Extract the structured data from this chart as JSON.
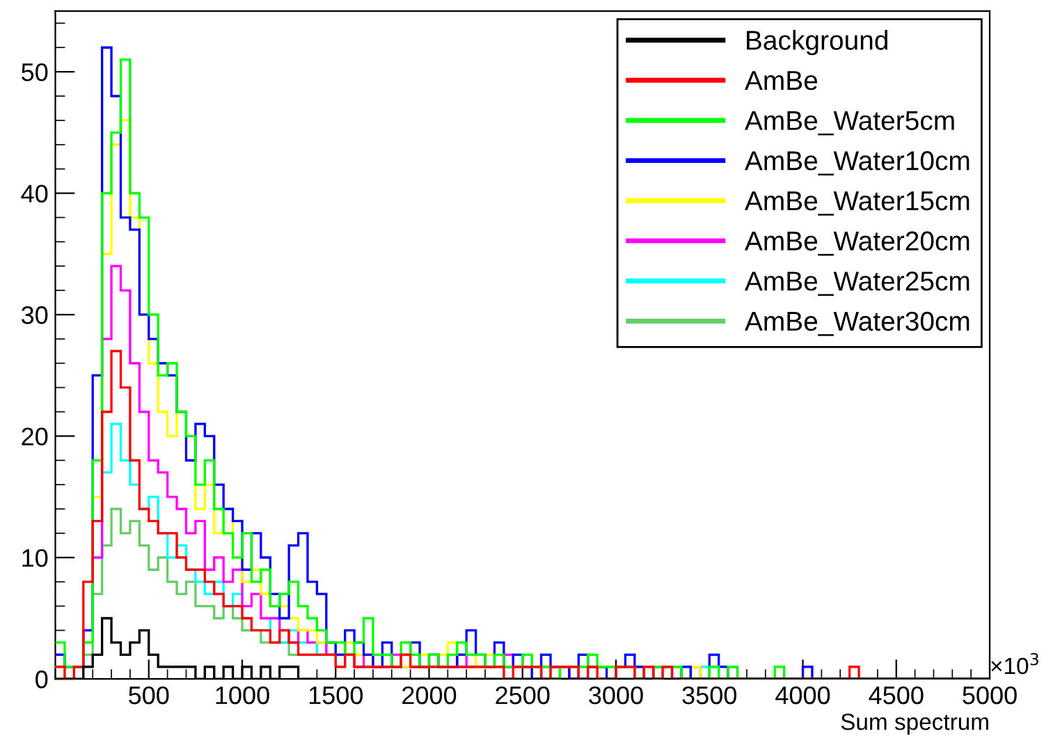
{
  "chart_data": {
    "type": "histogram",
    "xlabel": "Sum spectrum",
    "annotations": [
      "×10$^{3}$"
    ],
    "bins": [
      0,
      50,
      100,
      150,
      200,
      250,
      300,
      350,
      400,
      450,
      500,
      550,
      600,
      650,
      700,
      750,
      800,
      850,
      900,
      950,
      1000,
      1050,
      1100,
      1150,
      1200,
      1250,
      1300,
      1350,
      1400,
      1450,
      1500,
      1550,
      1600,
      1650,
      1700,
      1750,
      1800,
      1850,
      1900,
      1950,
      2000,
      2050,
      2100,
      2150,
      2200,
      2250,
      2300,
      2350,
      2400,
      2450,
      2500,
      2550,
      2600,
      2650,
      2700,
      2750,
      2800,
      2850,
      2900,
      2950,
      3000,
      3050,
      3100,
      3150,
      3200,
      3250,
      3300,
      3350,
      3400,
      3450,
      3500,
      3550,
      3600,
      3650,
      3700,
      3750,
      3800,
      3850,
      3900,
      3950,
      4000,
      4050,
      4100,
      4150,
      4200,
      4250,
      4300,
      4350,
      4400,
      4450,
      4500,
      4550,
      4600,
      4650,
      4700,
      4750,
      4800,
      4850,
      4900,
      4950,
      5000
    ],
    "series": [
      {
        "name": "Background",
        "color": "#000000",
        "values": [
          0,
          0,
          0,
          1,
          2,
          5,
          3,
          2,
          3,
          4,
          2,
          1,
          1,
          1,
          1,
          0,
          1,
          0,
          1,
          0,
          1,
          0,
          1,
          0,
          1,
          1,
          0,
          0,
          0,
          0,
          0,
          0,
          0,
          0,
          0,
          0,
          0,
          0,
          0,
          0,
          0,
          0,
          0,
          0,
          0,
          0,
          0,
          0,
          0,
          0,
          0,
          0,
          0,
          0,
          0,
          0,
          0,
          0,
          0,
          0,
          0,
          0,
          0,
          0,
          0,
          0,
          0,
          0,
          0,
          0,
          0,
          0,
          0,
          0,
          0,
          0,
          0,
          0,
          0,
          0,
          0,
          0,
          0,
          0,
          0,
          0,
          0,
          0,
          0,
          0,
          0,
          0,
          0,
          0,
          0,
          0,
          0,
          0,
          0,
          0
        ]
      },
      {
        "name": "AmBe",
        "color": "#ff0000",
        "values": [
          1,
          0,
          1,
          8,
          13,
          22,
          27,
          24,
          18,
          14,
          13,
          12,
          12,
          10,
          9,
          9,
          8,
          7,
          6,
          6,
          5,
          4,
          4,
          3,
          4,
          3,
          2,
          2,
          2,
          2,
          1,
          2,
          1,
          1,
          1,
          1,
          1,
          2,
          1,
          1,
          1,
          1,
          1,
          1,
          1,
          1,
          1,
          1,
          0,
          1,
          1,
          1,
          0,
          1,
          1,
          1,
          0,
          1,
          0,
          0,
          1,
          1,
          0,
          1,
          0,
          1,
          0,
          0,
          0,
          0,
          0,
          0,
          0,
          0,
          0,
          0,
          0,
          0,
          0,
          0,
          0,
          0,
          0,
          0,
          0,
          1,
          0,
          0,
          0,
          0,
          0,
          0,
          0,
          0,
          0,
          0,
          0,
          0,
          0,
          0
        ]
      },
      {
        "name": "AmBe_Water5cm",
        "color": "#00ff00",
        "values": [
          3,
          1,
          1,
          3,
          18,
          40,
          45,
          51,
          40,
          38,
          30,
          25,
          26,
          22,
          20,
          16,
          18,
          14,
          12,
          10,
          12,
          8,
          9,
          6,
          7,
          8,
          6,
          5,
          4,
          3,
          3,
          2,
          3,
          5,
          2,
          2,
          1,
          3,
          2,
          1,
          2,
          1,
          2,
          3,
          2,
          2,
          1,
          2,
          1,
          1,
          2,
          1,
          1,
          0,
          1,
          1,
          1,
          2,
          1,
          1,
          1,
          1,
          0,
          1,
          1,
          1,
          1,
          0,
          0,
          0,
          1,
          0,
          1,
          0,
          0,
          0,
          0,
          1,
          0,
          0,
          0,
          0,
          0,
          0,
          0,
          0,
          0,
          0,
          0,
          0,
          0,
          0,
          0,
          0,
          0,
          0,
          0,
          0,
          0,
          0
        ]
      },
      {
        "name": "AmBe_Water10cm",
        "color": "#0000ff",
        "values": [
          2,
          1,
          1,
          4,
          25,
          52,
          48,
          38,
          37,
          30,
          28,
          26,
          25,
          22,
          18,
          21,
          20,
          16,
          14,
          13,
          9,
          12,
          10,
          7,
          5,
          11,
          12,
          8,
          7,
          3,
          2,
          4,
          3,
          2,
          1,
          3,
          1,
          2,
          3,
          1,
          2,
          1,
          1,
          2,
          4,
          2,
          1,
          3,
          1,
          2,
          1,
          0,
          2,
          1,
          1,
          0,
          2,
          1,
          1,
          0,
          1,
          2,
          1,
          0,
          1,
          1,
          0,
          1,
          0,
          0,
          2,
          1,
          0,
          0,
          0,
          0,
          0,
          0,
          0,
          0,
          1,
          0,
          0,
          0,
          0,
          0,
          0,
          0,
          0,
          0,
          0,
          0,
          0,
          0,
          0,
          0,
          0,
          0,
          0,
          0
        ]
      },
      {
        "name": "AmBe_Water15cm",
        "color": "#ffff00",
        "values": [
          1,
          0,
          1,
          3,
          15,
          35,
          44,
          46,
          38,
          30,
          26,
          22,
          20,
          22,
          18,
          14,
          16,
          12,
          14,
          10,
          8,
          9,
          7,
          6,
          6,
          5,
          4,
          4,
          3,
          3,
          2,
          3,
          2,
          2,
          1,
          2,
          1,
          1,
          3,
          2,
          1,
          2,
          3,
          2,
          2,
          1,
          2,
          1,
          1,
          1,
          1,
          1,
          1,
          0,
          1,
          1,
          1,
          1,
          0,
          1,
          1,
          1,
          1,
          1,
          0,
          1,
          1,
          0,
          1,
          0,
          0,
          0,
          0,
          0,
          0,
          0,
          0,
          0,
          0,
          0,
          0,
          0,
          0,
          0,
          0,
          0,
          0,
          0,
          0,
          0,
          0,
          0,
          0,
          0,
          0,
          0,
          0,
          0,
          0,
          0
        ]
      },
      {
        "name": "AmBe_Water20cm",
        "color": "#ff00ff",
        "values": [
          2,
          1,
          1,
          4,
          10,
          28,
          34,
          32,
          26,
          22,
          18,
          17,
          15,
          14,
          12,
          13,
          9,
          10,
          8,
          9,
          6,
          7,
          5,
          5,
          4,
          3,
          4,
          3,
          3,
          2,
          2,
          2,
          1,
          2,
          1,
          1,
          2,
          1,
          1,
          1,
          2,
          1,
          1,
          2,
          1,
          1,
          1,
          1,
          2,
          1,
          1,
          1,
          1,
          1,
          1,
          0,
          1,
          1,
          1,
          1,
          1,
          1,
          1,
          1,
          0,
          1,
          1,
          0,
          1,
          0,
          0,
          0,
          1,
          0,
          0,
          0,
          0,
          0,
          0,
          0,
          0,
          0,
          0,
          0,
          0,
          0,
          0,
          0,
          0,
          0,
          0,
          0,
          0,
          0,
          0,
          0,
          0,
          0,
          0,
          0
        ]
      },
      {
        "name": "AmBe_Water25cm",
        "color": "#00ffff",
        "values": [
          1,
          1,
          1,
          3,
          10,
          17,
          21,
          18,
          16,
          14,
          15,
          12,
          10,
          11,
          9,
          8,
          7,
          8,
          6,
          7,
          5,
          4,
          4,
          5,
          3,
          4,
          3,
          3,
          2,
          3,
          2,
          2,
          1,
          1,
          1,
          2,
          1,
          1,
          1,
          1,
          1,
          1,
          1,
          1,
          1,
          1,
          1,
          1,
          1,
          1,
          1,
          1,
          1,
          1,
          1,
          1,
          0,
          1,
          1,
          1,
          1,
          1,
          1,
          1,
          0,
          1,
          1,
          1,
          0,
          1,
          1,
          0,
          0,
          0,
          0,
          0,
          0,
          0,
          0,
          0,
          0,
          0,
          0,
          0,
          0,
          0,
          0,
          0,
          0,
          0,
          0,
          0,
          0,
          0,
          0,
          0,
          0,
          0,
          0,
          0
        ]
      },
      {
        "name": "AmBe_Water30cm",
        "color": "#66cc66",
        "values": [
          0,
          1,
          1,
          2,
          7,
          11,
          14,
          12,
          13,
          11,
          9,
          10,
          8,
          7,
          8,
          6,
          6,
          5,
          6,
          5,
          4,
          4,
          3,
          3,
          3,
          2,
          2,
          2,
          2,
          2,
          1,
          2,
          1,
          1,
          1,
          1,
          1,
          1,
          1,
          1,
          1,
          1,
          1,
          1,
          1,
          1,
          1,
          1,
          1,
          1,
          1,
          1,
          1,
          1,
          1,
          1,
          1,
          1,
          1,
          1,
          1,
          1,
          0,
          1,
          1,
          1,
          1,
          0,
          1,
          0,
          0,
          0,
          0,
          0,
          0,
          0,
          0,
          0,
          0,
          0,
          0,
          0,
          0,
          0,
          0,
          0,
          0,
          0,
          0,
          0,
          0,
          0,
          0,
          0,
          0,
          0,
          0,
          0,
          0,
          0
        ]
      }
    ],
    "xlim": [
      0,
      5000
    ],
    "xticks": [
      500,
      1000,
      1500,
      2000,
      2500,
      3000,
      3500,
      4000,
      4500,
      5000
    ],
    "ylim": [
      0,
      55
    ],
    "yticks": [
      0,
      10,
      20,
      30,
      40,
      50
    ],
    "grid": false,
    "legend": "top right"
  }
}
